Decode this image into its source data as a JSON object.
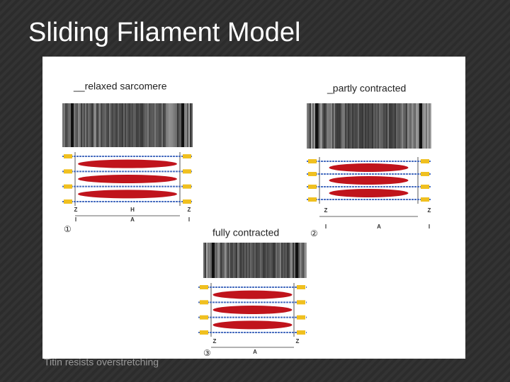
{
  "slide": {
    "title": "Sliding Filament Model",
    "footnote": "Titin resists overstretching",
    "panels": [
      {
        "label": "__relaxed sarcomere",
        "number": "①",
        "markers": [
          "Z",
          "I",
          "A",
          "H",
          "Z",
          "I"
        ]
      },
      {
        "label": "_partly contracted",
        "number": "②",
        "markers": [
          "Z",
          "I",
          "A",
          "Z",
          "I"
        ]
      },
      {
        "label": "fully contracted",
        "number": "③",
        "markers": [
          "Z",
          "A",
          "Z"
        ]
      }
    ]
  }
}
